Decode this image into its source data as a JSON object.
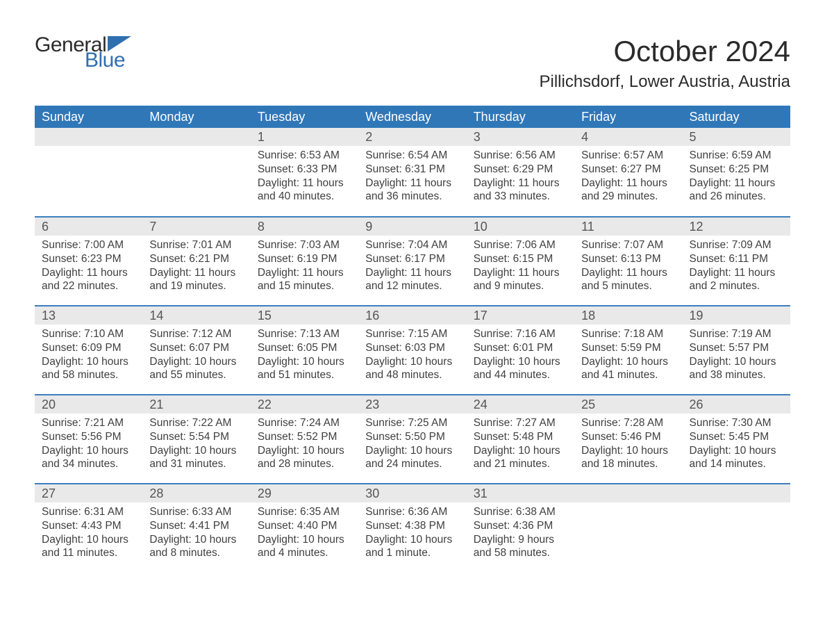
{
  "logo": {
    "text_general": "General",
    "text_blue": "Blue",
    "triangle_color": "#2f6fb0"
  },
  "title": "October 2024",
  "location": "Pillichsdorf, Lower Austria, Austria",
  "colors": {
    "header_bg": "#3077b8",
    "header_text": "#ffffff",
    "daynum_bg": "#e9e9e9",
    "daynum_text": "#555555",
    "body_text": "#3f3f3f",
    "row_border": "#3c7fbd",
    "page_bg": "#ffffff"
  },
  "typography": {
    "title_fontsize": 42,
    "location_fontsize": 24,
    "weekday_fontsize": 18,
    "daynum_fontsize": 18,
    "body_fontsize": 15.5,
    "font_family": "Arial"
  },
  "weekdays": [
    "Sunday",
    "Monday",
    "Tuesday",
    "Wednesday",
    "Thursday",
    "Friday",
    "Saturday"
  ],
  "weeks": [
    [
      {
        "blank": true
      },
      {
        "blank": true
      },
      {
        "n": "1",
        "sunrise": "6:53 AM",
        "sunset": "6:33 PM",
        "dl1": "Daylight: 11 hours",
        "dl2": "and 40 minutes."
      },
      {
        "n": "2",
        "sunrise": "6:54 AM",
        "sunset": "6:31 PM",
        "dl1": "Daylight: 11 hours",
        "dl2": "and 36 minutes."
      },
      {
        "n": "3",
        "sunrise": "6:56 AM",
        "sunset": "6:29 PM",
        "dl1": "Daylight: 11 hours",
        "dl2": "and 33 minutes."
      },
      {
        "n": "4",
        "sunrise": "6:57 AM",
        "sunset": "6:27 PM",
        "dl1": "Daylight: 11 hours",
        "dl2": "and 29 minutes."
      },
      {
        "n": "5",
        "sunrise": "6:59 AM",
        "sunset": "6:25 PM",
        "dl1": "Daylight: 11 hours",
        "dl2": "and 26 minutes."
      }
    ],
    [
      {
        "n": "6",
        "sunrise": "7:00 AM",
        "sunset": "6:23 PM",
        "dl1": "Daylight: 11 hours",
        "dl2": "and 22 minutes."
      },
      {
        "n": "7",
        "sunrise": "7:01 AM",
        "sunset": "6:21 PM",
        "dl1": "Daylight: 11 hours",
        "dl2": "and 19 minutes."
      },
      {
        "n": "8",
        "sunrise": "7:03 AM",
        "sunset": "6:19 PM",
        "dl1": "Daylight: 11 hours",
        "dl2": "and 15 minutes."
      },
      {
        "n": "9",
        "sunrise": "7:04 AM",
        "sunset": "6:17 PM",
        "dl1": "Daylight: 11 hours",
        "dl2": "and 12 minutes."
      },
      {
        "n": "10",
        "sunrise": "7:06 AM",
        "sunset": "6:15 PM",
        "dl1": "Daylight: 11 hours",
        "dl2": "and 9 minutes."
      },
      {
        "n": "11",
        "sunrise": "7:07 AM",
        "sunset": "6:13 PM",
        "dl1": "Daylight: 11 hours",
        "dl2": "and 5 minutes."
      },
      {
        "n": "12",
        "sunrise": "7:09 AM",
        "sunset": "6:11 PM",
        "dl1": "Daylight: 11 hours",
        "dl2": "and 2 minutes."
      }
    ],
    [
      {
        "n": "13",
        "sunrise": "7:10 AM",
        "sunset": "6:09 PM",
        "dl1": "Daylight: 10 hours",
        "dl2": "and 58 minutes."
      },
      {
        "n": "14",
        "sunrise": "7:12 AM",
        "sunset": "6:07 PM",
        "dl1": "Daylight: 10 hours",
        "dl2": "and 55 minutes."
      },
      {
        "n": "15",
        "sunrise": "7:13 AM",
        "sunset": "6:05 PM",
        "dl1": "Daylight: 10 hours",
        "dl2": "and 51 minutes."
      },
      {
        "n": "16",
        "sunrise": "7:15 AM",
        "sunset": "6:03 PM",
        "dl1": "Daylight: 10 hours",
        "dl2": "and 48 minutes."
      },
      {
        "n": "17",
        "sunrise": "7:16 AM",
        "sunset": "6:01 PM",
        "dl1": "Daylight: 10 hours",
        "dl2": "and 44 minutes."
      },
      {
        "n": "18",
        "sunrise": "7:18 AM",
        "sunset": "5:59 PM",
        "dl1": "Daylight: 10 hours",
        "dl2": "and 41 minutes."
      },
      {
        "n": "19",
        "sunrise": "7:19 AM",
        "sunset": "5:57 PM",
        "dl1": "Daylight: 10 hours",
        "dl2": "and 38 minutes."
      }
    ],
    [
      {
        "n": "20",
        "sunrise": "7:21 AM",
        "sunset": "5:56 PM",
        "dl1": "Daylight: 10 hours",
        "dl2": "and 34 minutes."
      },
      {
        "n": "21",
        "sunrise": "7:22 AM",
        "sunset": "5:54 PM",
        "dl1": "Daylight: 10 hours",
        "dl2": "and 31 minutes."
      },
      {
        "n": "22",
        "sunrise": "7:24 AM",
        "sunset": "5:52 PM",
        "dl1": "Daylight: 10 hours",
        "dl2": "and 28 minutes."
      },
      {
        "n": "23",
        "sunrise": "7:25 AM",
        "sunset": "5:50 PM",
        "dl1": "Daylight: 10 hours",
        "dl2": "and 24 minutes."
      },
      {
        "n": "24",
        "sunrise": "7:27 AM",
        "sunset": "5:48 PM",
        "dl1": "Daylight: 10 hours",
        "dl2": "and 21 minutes."
      },
      {
        "n": "25",
        "sunrise": "7:28 AM",
        "sunset": "5:46 PM",
        "dl1": "Daylight: 10 hours",
        "dl2": "and 18 minutes."
      },
      {
        "n": "26",
        "sunrise": "7:30 AM",
        "sunset": "5:45 PM",
        "dl1": "Daylight: 10 hours",
        "dl2": "and 14 minutes."
      }
    ],
    [
      {
        "n": "27",
        "sunrise": "6:31 AM",
        "sunset": "4:43 PM",
        "dl1": "Daylight: 10 hours",
        "dl2": "and 11 minutes."
      },
      {
        "n": "28",
        "sunrise": "6:33 AM",
        "sunset": "4:41 PM",
        "dl1": "Daylight: 10 hours",
        "dl2": "and 8 minutes."
      },
      {
        "n": "29",
        "sunrise": "6:35 AM",
        "sunset": "4:40 PM",
        "dl1": "Daylight: 10 hours",
        "dl2": "and 4 minutes."
      },
      {
        "n": "30",
        "sunrise": "6:36 AM",
        "sunset": "4:38 PM",
        "dl1": "Daylight: 10 hours",
        "dl2": "and 1 minute."
      },
      {
        "n": "31",
        "sunrise": "6:38 AM",
        "sunset": "4:36 PM",
        "dl1": "Daylight: 9 hours",
        "dl2": "and 58 minutes."
      },
      {
        "blank": true
      },
      {
        "blank": true
      }
    ]
  ],
  "labels": {
    "sunrise_prefix": "Sunrise: ",
    "sunset_prefix": "Sunset: "
  }
}
